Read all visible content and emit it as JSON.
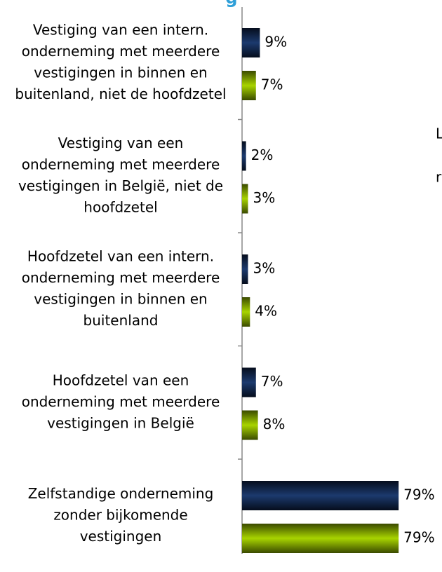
{
  "chart_data": {
    "type": "hbar",
    "title": "g",
    "annotations": [
      "L",
      "r"
    ],
    "categories": [
      [
        "Vestiging van een intern.",
        "onderneming met meerdere",
        "vestigingen in binnen en",
        "buitenland, niet de hoofdzetel"
      ],
      [
        "Vestiging van een",
        "onderneming met meerdere",
        "vestigingen in België, niet de",
        "hoofdzetel"
      ],
      [
        "Hoofdzetel van een intern.",
        "onderneming met meerdere",
        "vestigingen in binnen en",
        "buitenland"
      ],
      [
        "Hoofdzetel van een",
        "onderneming met meerdere",
        "vestigingen in België"
      ],
      [
        "Zelfstandige onderneming",
        "zonder bijkomende",
        "vestigingen"
      ]
    ],
    "series": [
      {
        "color": "#1c3a6e",
        "values": [
          9,
          2,
          3,
          7,
          79
        ],
        "value_labels": [
          "9%",
          "2%",
          "3%",
          "7%",
          "79%"
        ]
      },
      {
        "color": "#9ccc00",
        "values": [
          7,
          3,
          4,
          8,
          79
        ],
        "value_labels": [
          "7%",
          "3%",
          "4%",
          "8%",
          "79%"
        ]
      }
    ],
    "xlim": [
      0,
      80
    ]
  }
}
